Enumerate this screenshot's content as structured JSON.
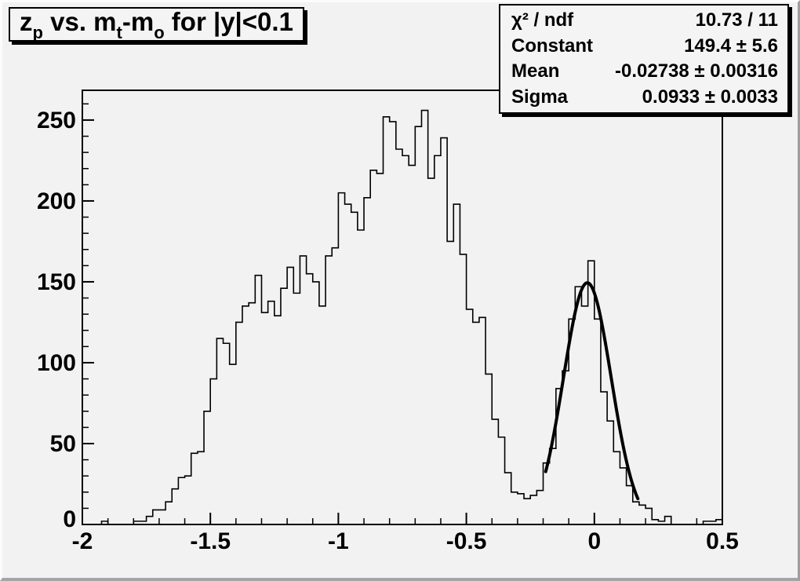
{
  "colors": {
    "background": "#f2f2f2",
    "frame_line": "#000000",
    "histogram_line": "#000000",
    "fit_line": "#000000",
    "box_background": "#f4f4f4",
    "box_shadow": "#000000"
  },
  "title": {
    "plain": "z_p vs. m_t-m_o for |y|<0.1",
    "parts": [
      {
        "text": "z"
      },
      {
        "text": "p",
        "sub": true
      },
      {
        "text": " vs. m"
      },
      {
        "text": "t",
        "sub": true
      },
      {
        "text": "-m"
      },
      {
        "text": "o",
        "sub": true
      },
      {
        "text": " for |y|<0.1"
      }
    ]
  },
  "stats": {
    "rows": [
      {
        "label": "χ² / ndf",
        "value": "10.73 / 11"
      },
      {
        "label": "Constant",
        "value": "149.4 ± 5.6"
      },
      {
        "label": "Mean",
        "value": "-0.02738 ± 0.00316"
      },
      {
        "label": "Sigma",
        "value": "0.0933 ± 0.0033"
      }
    ]
  },
  "chart_data": {
    "type": "bar",
    "subtype": "histogram-with-gaussian-fit",
    "title": "z_p vs. m_t-m_o for |y|<0.1",
    "xlabel": "",
    "ylabel": "",
    "xlim": [
      -2.0,
      0.5
    ],
    "ylim": [
      0,
      268.4
    ],
    "grid": false,
    "legend": false,
    "bin_start": -2.0,
    "bin_width": 0.025,
    "counts": [
      0,
      0,
      0,
      2,
      0,
      0,
      0,
      0,
      2,
      2,
      5,
      9,
      9,
      14,
      22,
      29,
      30,
      44,
      45,
      70,
      90,
      115,
      112,
      99,
      125,
      135,
      137,
      154,
      131,
      138,
      129,
      146,
      159,
      143,
      166,
      155,
      150,
      135,
      166,
      171,
      205,
      198,
      193,
      182,
      202,
      219,
      217,
      252,
      249,
      232,
      228,
      222,
      246,
      256,
      214,
      228,
      239,
      175,
      198,
      167,
      133,
      125,
      128,
      93,
      65,
      54,
      32,
      20,
      19,
      16,
      18,
      21,
      38,
      47,
      84,
      95,
      127,
      147,
      135,
      163,
      127,
      82,
      64,
      45,
      35,
      24,
      14,
      12,
      10,
      3,
      2,
      5,
      0,
      0,
      0,
      0,
      0,
      2,
      2,
      3
    ],
    "x_ticks": [
      -2,
      -1.5,
      -1,
      -0.5,
      0,
      0.5
    ],
    "x_tick_labels": [
      "-2",
      "-1.5",
      "-1",
      "-0.5",
      "0",
      "0.5"
    ],
    "x_minor_step": 0.1,
    "y_ticks": [
      0,
      50,
      100,
      150,
      200,
      250
    ],
    "y_tick_labels": [
      "0",
      "50",
      "100",
      "150",
      "200",
      "250"
    ],
    "y_minor_step": 10,
    "fit": {
      "constant": 149.4,
      "mean": -0.02738,
      "sigma": 0.0933,
      "draw_min": -0.19,
      "draw_max": 0.17
    }
  }
}
